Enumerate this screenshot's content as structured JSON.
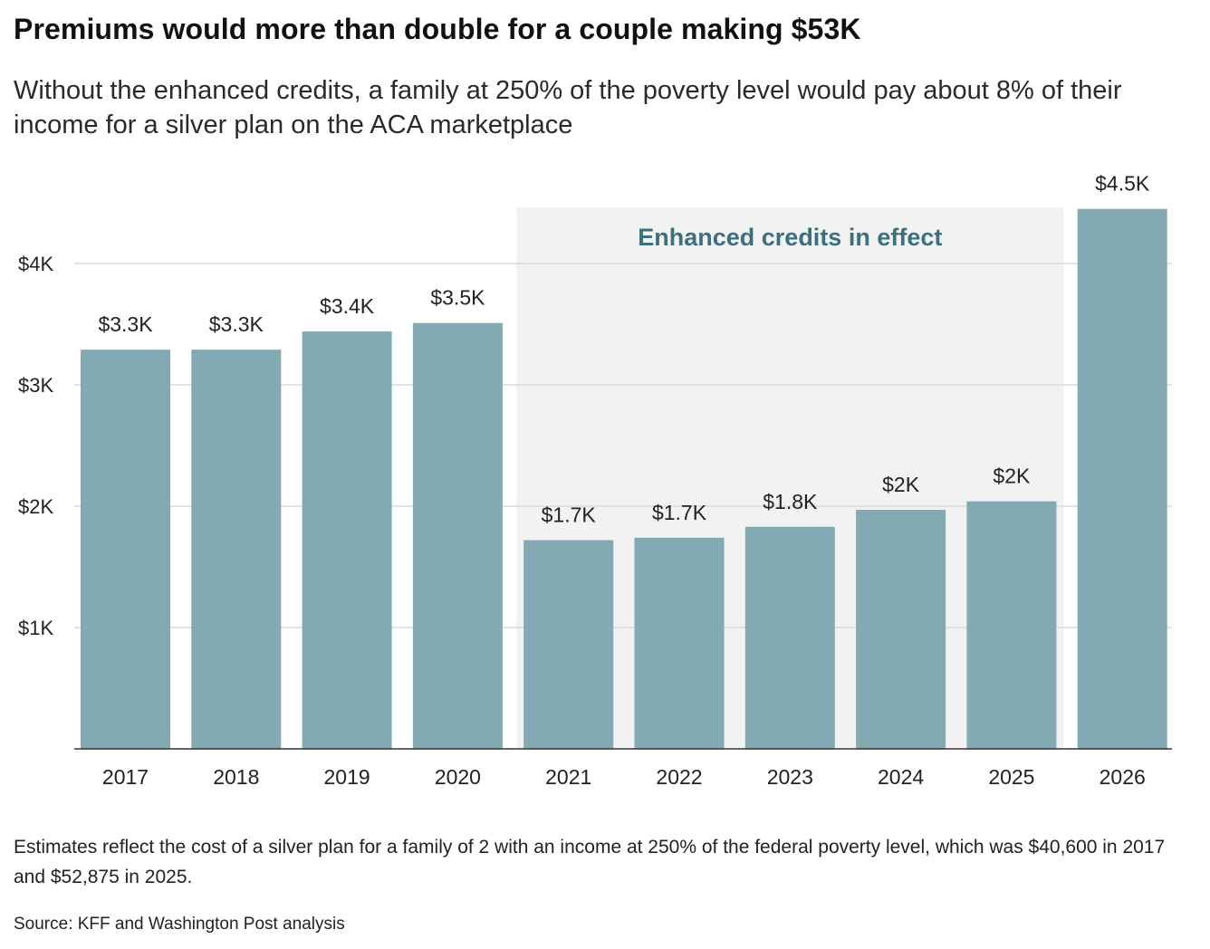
{
  "header": {
    "title": "Premiums would more than double for a couple making $53K",
    "subtitle": "Without the enhanced credits, a family at 250% of the poverty level would pay about 8% of their income for a silver plan on the ACA marketplace"
  },
  "chart_data": {
    "type": "bar",
    "title": "Premiums would more than double for a couple making $53K",
    "xlabel": "",
    "ylabel": "",
    "categories": [
      "2017",
      "2018",
      "2019",
      "2020",
      "2021",
      "2022",
      "2023",
      "2024",
      "2025",
      "2026"
    ],
    "values": [
      3290,
      3290,
      3440,
      3510,
      1720,
      1740,
      1830,
      1970,
      2040,
      4450
    ],
    "data_labels": [
      "$3.3K",
      "$3.3K",
      "$3.4K",
      "$3.5K",
      "$1.7K",
      "$1.7K",
      "$1.8K",
      "$2K",
      "$2K",
      "$4.5K"
    ],
    "ylim": [
      0,
      4500
    ],
    "yticks": [
      1000,
      2000,
      3000,
      4000
    ],
    "ytick_labels": [
      "$1K",
      "$2K",
      "$3K",
      "$4K"
    ],
    "grid": true,
    "highlight": {
      "label": "Enhanced credits in effect",
      "start_category": "2021",
      "end_category": "2025"
    },
    "colors": {
      "bar": "#83a9b3",
      "highlight_band": "#f2f2f2",
      "highlight_text": "#3d6f7e",
      "grid": "#d9d9d9",
      "axis": "#333333"
    }
  },
  "footer": {
    "note": "Estimates reflect the cost of a silver plan for a family of 2 with an income at 250% of the federal poverty level, which was $40,600 in 2017 and $52,875 in 2025.",
    "source": "Source: KFF and Washington Post analysis"
  }
}
